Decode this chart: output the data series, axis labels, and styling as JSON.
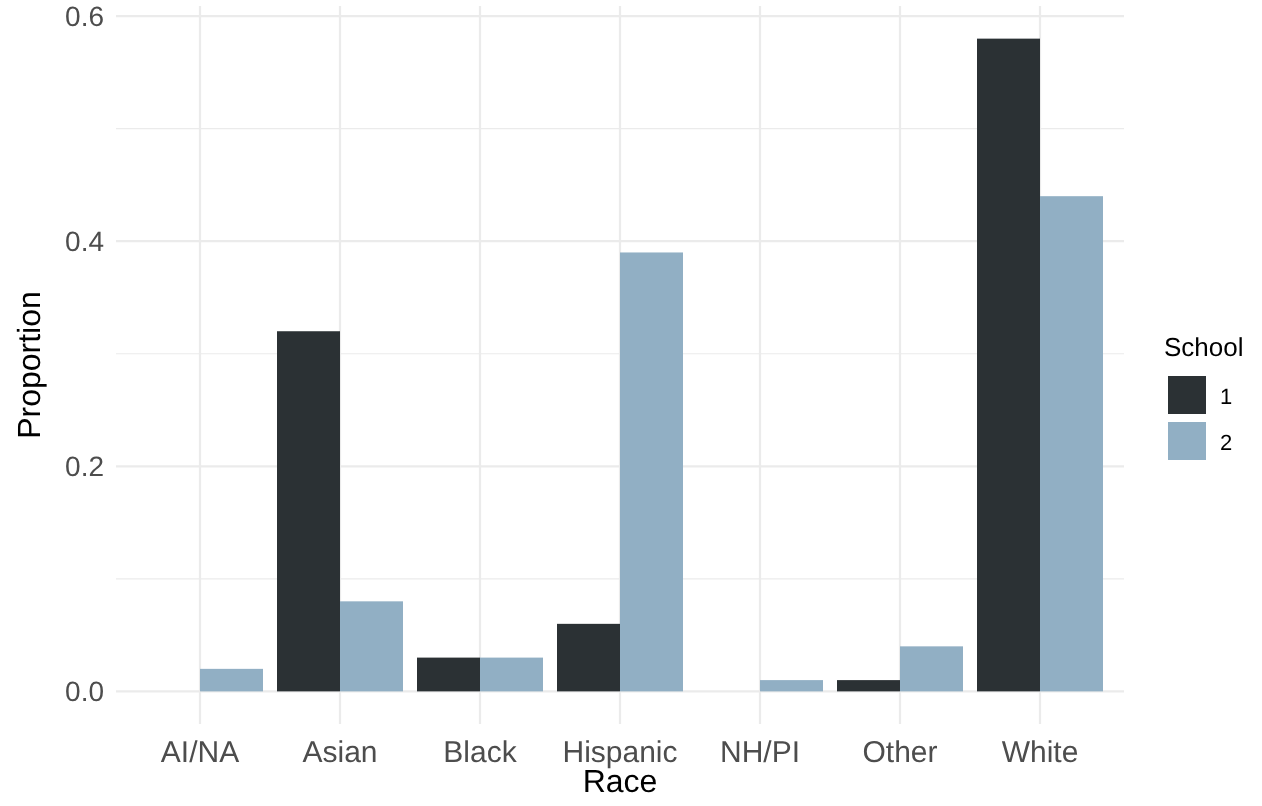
{
  "chart_data": {
    "type": "bar",
    "xlabel": "Race",
    "ylabel": "Proportion",
    "legend_title": "School",
    "categories": [
      "AI/NA",
      "Asian",
      "Black",
      "Hispanic",
      "NH/PI",
      "Other",
      "White"
    ],
    "series": [
      {
        "name": "1",
        "color": "#2b3134",
        "values": [
          null,
          0.32,
          0.03,
          0.06,
          null,
          0.01,
          0.58
        ]
      },
      {
        "name": "2",
        "color": "#91afc4",
        "values": [
          0.02,
          0.08,
          0.03,
          0.39,
          0.01,
          0.04,
          0.44
        ]
      }
    ],
    "ylim": [
      -0.029,
      0.609
    ],
    "yticks": [
      {
        "value": 0,
        "label": "0.0"
      },
      {
        "value": 0.1,
        "label": null
      },
      {
        "value": 0.2,
        "label": "0.2"
      },
      {
        "value": 0.3,
        "label": null
      },
      {
        "value": 0.4,
        "label": "0.4"
      },
      {
        "value": 0.5,
        "label": null
      },
      {
        "value": 0.6,
        "label": "0.6"
      }
    ],
    "grid": true,
    "legend": "right"
  }
}
